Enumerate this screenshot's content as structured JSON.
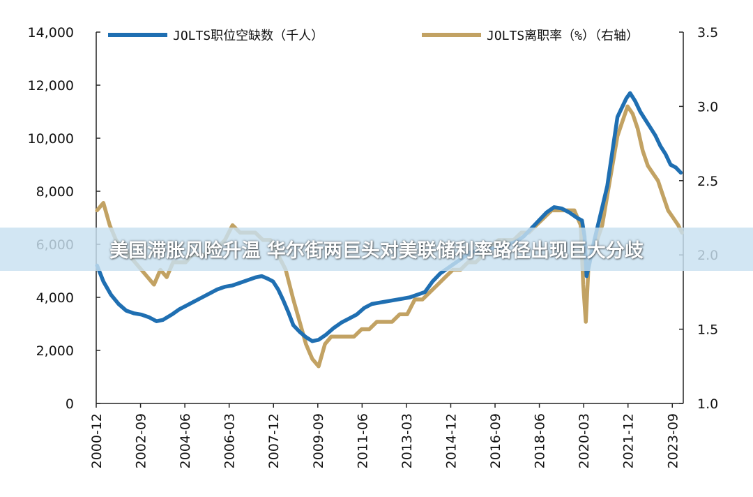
{
  "banner": {
    "headline": "美国滞胀风险升温 华尔街两巨头对美联储利率路径出现巨大分歧"
  },
  "colors": {
    "openings": "#1f6fb2",
    "quits": "#c2a263"
  },
  "chart_data": {
    "type": "line",
    "title": "",
    "legend": [
      "JOLTS职位空缺数（千人）",
      "JOLTS离职率（%）（右轴）"
    ],
    "legend_position": "top",
    "grid": false,
    "x_range": [
      2000.917,
      2024.1
    ],
    "x_tick_labels": [
      "2000-12",
      "2002-09",
      "2004-06",
      "2006-03",
      "2007-12",
      "2009-09",
      "2011-06",
      "2013-03",
      "2014-12",
      "2016-09",
      "2018-06",
      "2020-03",
      "2021-12",
      "2023-09"
    ],
    "x_tick_values": [
      2000.917,
      2002.667,
      2004.417,
      2006.167,
      2007.917,
      2009.667,
      2011.417,
      2013.167,
      2014.917,
      2016.667,
      2018.417,
      2020.167,
      2021.917,
      2023.667
    ],
    "y_left": {
      "range": [
        0,
        14000
      ],
      "tick_labels": [
        "0",
        "2,000",
        "4,000",
        "6,000",
        "8,000",
        "10,000",
        "12,000",
        "14,000"
      ],
      "tick_values": [
        0,
        2000,
        4000,
        6000,
        8000,
        10000,
        12000,
        14000
      ]
    },
    "y_right": {
      "range": [
        1.0,
        3.5
      ],
      "tick_labels": [
        "1.0",
        "1.5",
        "2.0",
        "2.5",
        "3.0",
        "3.5"
      ],
      "tick_values": [
        1.0,
        1.5,
        2.0,
        2.5,
        3.0,
        3.5
      ]
    },
    "series": [
      {
        "name": "JOLTS职位空缺数（千人）",
        "axis": "left",
        "x": [
          2000.95,
          2001.2,
          2001.5,
          2001.8,
          2002.1,
          2002.4,
          2002.7,
          2003.0,
          2003.3,
          2003.55,
          2003.9,
          2004.2,
          2004.5,
          2004.8,
          2005.1,
          2005.4,
          2005.7,
          2006.0,
          2006.3,
          2006.6,
          2006.9,
          2007.2,
          2007.45,
          2007.7,
          2007.9,
          2008.1,
          2008.3,
          2008.5,
          2008.7,
          2008.95,
          2009.2,
          2009.45,
          2009.7,
          2010.0,
          2010.3,
          2010.6,
          2010.9,
          2011.2,
          2011.5,
          2011.8,
          2012.1,
          2012.4,
          2012.7,
          2013.0,
          2013.3,
          2013.6,
          2013.9,
          2014.2,
          2014.5,
          2014.8,
          2015.1,
          2015.4,
          2015.7,
          2016.0,
          2016.3,
          2016.6,
          2016.9,
          2017.2,
          2017.5,
          2017.8,
          2018.1,
          2018.4,
          2018.7,
          2019.0,
          2019.3,
          2019.6,
          2019.9,
          2020.1,
          2020.2,
          2020.28,
          2020.4,
          2020.55,
          2020.7,
          2020.9,
          2021.1,
          2021.3,
          2021.5,
          2021.7,
          2021.85,
          2022.0,
          2022.2,
          2022.4,
          2022.6,
          2022.8,
          2023.0,
          2023.2,
          2023.4,
          2023.6,
          2023.8,
          2024.0
        ],
        "values": [
          5200,
          4600,
          4100,
          3750,
          3500,
          3400,
          3350,
          3250,
          3100,
          3150,
          3350,
          3550,
          3700,
          3850,
          4000,
          4150,
          4300,
          4400,
          4450,
          4550,
          4650,
          4750,
          4800,
          4700,
          4600,
          4300,
          3900,
          3450,
          2950,
          2700,
          2500,
          2350,
          2400,
          2600,
          2850,
          3050,
          3200,
          3350,
          3600,
          3750,
          3800,
          3850,
          3900,
          3950,
          4000,
          4100,
          4200,
          4600,
          4900,
          5100,
          5300,
          5500,
          5700,
          5750,
          5800,
          5850,
          5900,
          6000,
          6100,
          6300,
          6600,
          6900,
          7200,
          7400,
          7350,
          7200,
          7000,
          6900,
          6300,
          4800,
          5300,
          6000,
          6600,
          7400,
          8200,
          9500,
          10800,
          11200,
          11500,
          11700,
          11400,
          11000,
          10700,
          10400,
          10100,
          9700,
          9400,
          9000,
          8900,
          8700
        ],
        "color": "#1f6fb2"
      },
      {
        "name": "JOLTS离职率（%）（右轴）",
        "axis": "right",
        "x": [
          2000.95,
          2001.2,
          2001.45,
          2001.7,
          2001.95,
          2002.2,
          2002.45,
          2002.7,
          2002.95,
          2003.2,
          2003.45,
          2003.7,
          2003.95,
          2004.2,
          2004.45,
          2004.7,
          2004.95,
          2005.2,
          2005.45,
          2005.7,
          2006.0,
          2006.3,
          2006.6,
          2006.9,
          2007.2,
          2007.5,
          2007.8,
          2008.1,
          2008.4,
          2008.7,
          2008.95,
          2009.2,
          2009.45,
          2009.7,
          2009.95,
          2010.2,
          2010.5,
          2010.8,
          2011.1,
          2011.4,
          2011.7,
          2012.0,
          2012.3,
          2012.6,
          2012.9,
          2013.2,
          2013.5,
          2013.8,
          2014.1,
          2014.4,
          2014.7,
          2015.0,
          2015.3,
          2015.6,
          2015.9,
          2016.2,
          2016.5,
          2016.8,
          2017.1,
          2017.4,
          2017.7,
          2018.0,
          2018.3,
          2018.6,
          2018.9,
          2019.2,
          2019.5,
          2019.8,
          2020.05,
          2020.15,
          2020.25,
          2020.35,
          2020.5,
          2020.7,
          2020.9,
          2021.1,
          2021.3,
          2021.5,
          2021.7,
          2021.9,
          2022.1,
          2022.3,
          2022.5,
          2022.7,
          2022.9,
          2023.1,
          2023.3,
          2023.5,
          2023.7,
          2023.9,
          2024.05
        ],
        "values": [
          2.3,
          2.35,
          2.2,
          2.1,
          2.05,
          2.0,
          1.95,
          1.9,
          1.85,
          1.8,
          1.9,
          1.85,
          1.95,
          1.95,
          1.95,
          2.0,
          2.0,
          2.0,
          2.05,
          2.05,
          2.1,
          2.2,
          2.15,
          2.15,
          2.15,
          2.1,
          2.1,
          2.0,
          1.9,
          1.7,
          1.55,
          1.4,
          1.3,
          1.25,
          1.4,
          1.45,
          1.45,
          1.45,
          1.45,
          1.5,
          1.5,
          1.55,
          1.55,
          1.55,
          1.6,
          1.6,
          1.7,
          1.7,
          1.75,
          1.8,
          1.85,
          1.9,
          1.9,
          1.95,
          1.95,
          2.0,
          2.05,
          2.1,
          2.1,
          2.1,
          2.15,
          2.15,
          2.2,
          2.25,
          2.3,
          2.3,
          2.3,
          2.3,
          2.2,
          1.8,
          1.55,
          1.9,
          2.05,
          2.1,
          2.2,
          2.4,
          2.6,
          2.8,
          2.9,
          3.0,
          2.95,
          2.85,
          2.7,
          2.6,
          2.55,
          2.5,
          2.4,
          2.3,
          2.25,
          2.2,
          2.15
        ],
        "color": "#c2a263"
      }
    ]
  }
}
